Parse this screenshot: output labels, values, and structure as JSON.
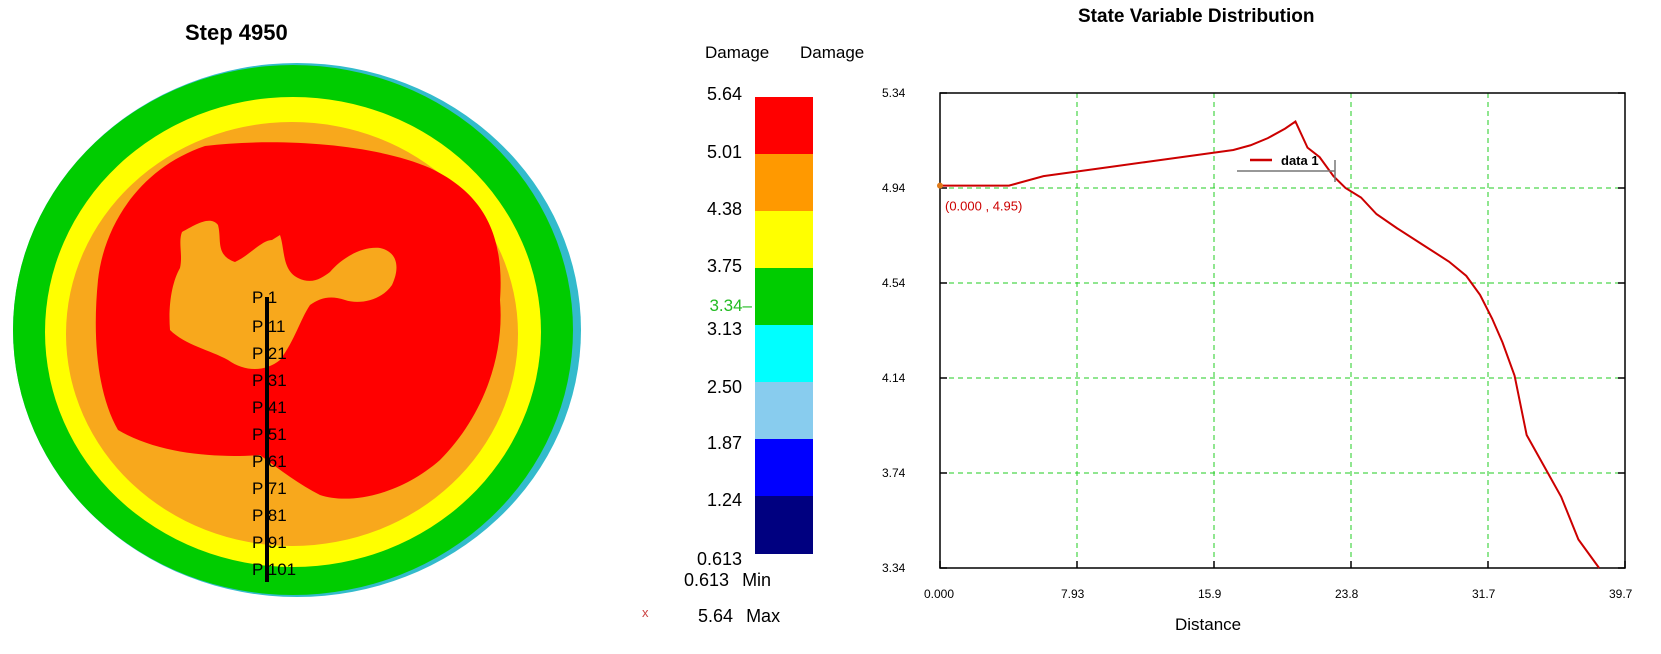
{
  "left_panel": {
    "step_title": "Step 4950",
    "probe_points": [
      "P 1",
      "P 11",
      "P 21",
      "P 31",
      "P 41",
      "P 51",
      "P 61",
      "P 71",
      "P 81",
      "P 91",
      "P 101"
    ]
  },
  "legend": {
    "title": "Damage",
    "title_duplicate": "Damage",
    "ticks": [
      "5.64",
      "5.01",
      "4.38",
      "3.75",
      "3.13",
      "2.50",
      "1.87",
      "1.24",
      "0.613"
    ],
    "current_value": "3.34",
    "band_colors": [
      "#ff0000",
      "#ff9900",
      "#ffff00",
      "#00cc00",
      "#00ffff",
      "#88ccee",
      "#0000ff",
      "#000080"
    ],
    "min_value": "0.613",
    "min_label": "Min",
    "max_value": "5.64",
    "max_label": "Max",
    "marker": "x"
  },
  "chart_data": {
    "type": "line",
    "title": "State Variable Distribution",
    "xlabel": "Distance",
    "ylabel": "",
    "xlim": [
      0,
      39.7
    ],
    "ylim": [
      3.34,
      5.34
    ],
    "x_ticks": [
      "0.000",
      "7.93",
      "15.9",
      "23.8",
      "31.7",
      "39.7"
    ],
    "y_ticks": [
      "5.34",
      "4.94",
      "4.54",
      "4.14",
      "3.74",
      "3.34"
    ],
    "grid": true,
    "series": [
      {
        "name": "data 1",
        "color": "#cc0000",
        "x": [
          0,
          2.0,
          4.0,
          6.0,
          8.0,
          10.0,
          12.0,
          14.0,
          16.0,
          17.0,
          18.0,
          19.0,
          20.0,
          20.6,
          21.3,
          22.0,
          22.8,
          23.5,
          24.4,
          25.3,
          26.5,
          28.0,
          29.5,
          30.5,
          31.3,
          32.0,
          32.6,
          33.3,
          34.0,
          35.0,
          36.0,
          37.0,
          38.2
        ],
        "values": [
          4.95,
          4.95,
          4.95,
          4.99,
          5.01,
          5.03,
          5.05,
          5.07,
          5.09,
          5.1,
          5.12,
          5.15,
          5.19,
          5.22,
          5.11,
          5.07,
          4.99,
          4.94,
          4.9,
          4.83,
          4.77,
          4.7,
          4.63,
          4.57,
          4.49,
          4.39,
          4.29,
          4.15,
          3.9,
          3.77,
          3.64,
          3.46,
          3.34
        ]
      }
    ],
    "legend_label": "data 1",
    "legend_placement": "top-center",
    "annotation": "(0.000 , 4.95)"
  }
}
